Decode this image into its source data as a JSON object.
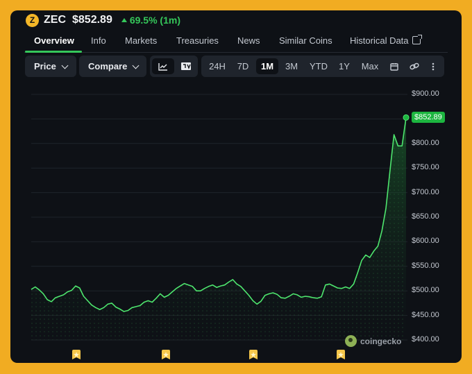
{
  "header": {
    "coin_glyph": "Z",
    "symbol": "ZEC",
    "price": "$852.89",
    "change": "69.5% (1m)",
    "change_color": "#35c75a",
    "coin_color": "#f4b728"
  },
  "tabs": [
    {
      "label": "Overview",
      "active": true
    },
    {
      "label": "Info"
    },
    {
      "label": "Markets"
    },
    {
      "label": "Treasuries"
    },
    {
      "label": "News"
    },
    {
      "label": "Similar Coins"
    },
    {
      "label": "Historical Data",
      "icon": "external-link-icon"
    }
  ],
  "toolbar": {
    "price_label": "Price",
    "compare_label": "Compare",
    "chart_type_icons": [
      "line-chart-icon",
      "tradingview-icon"
    ],
    "ranges": [
      "24H",
      "7D",
      "1M",
      "3M",
      "YTD",
      "1Y",
      "Max"
    ],
    "selected_range": "1M",
    "extra_icons": [
      "calendar-icon",
      "link-icon",
      "more-vertical-icon"
    ]
  },
  "chart_data": {
    "type": "area",
    "title": "",
    "xlabel": "",
    "ylabel": "",
    "ylim": [
      400,
      900
    ],
    "yticks": [
      "$900.00",
      "$850.00",
      "$800.00",
      "$750.00",
      "$700.00",
      "$650.00",
      "$600.00",
      "$550.00",
      "$500.00",
      "$450.00",
      "$400.00"
    ],
    "last_price_label": "$852.89",
    "line_color": "#4ee66e",
    "series": [
      {
        "values": [
          503,
          508,
          502,
          494,
          482,
          478,
          486,
          489,
          492,
          498,
          501,
          510,
          506,
          489,
          480,
          471,
          466,
          462,
          466,
          473,
          475,
          467,
          463,
          458,
          460,
          466,
          468,
          470,
          477,
          480,
          477,
          485,
          494,
          487,
          491,
          498,
          505,
          510,
          515,
          512,
          509,
          500,
          500,
          505,
          509,
          512,
          507,
          510,
          512,
          518,
          523,
          514,
          509,
          500,
          491,
          480,
          473,
          479,
          491,
          494,
          496,
          493,
          486,
          485,
          489,
          494,
          492,
          487,
          489,
          488,
          486,
          485,
          488,
          512,
          514,
          510,
          506,
          505,
          508,
          505,
          514,
          537,
          562,
          573,
          568,
          581,
          591,
          622,
          668,
          744,
          818,
          795,
          795,
          852.89
        ]
      }
    ],
    "markers": 4
  },
  "branding": {
    "label": "coingecko"
  }
}
